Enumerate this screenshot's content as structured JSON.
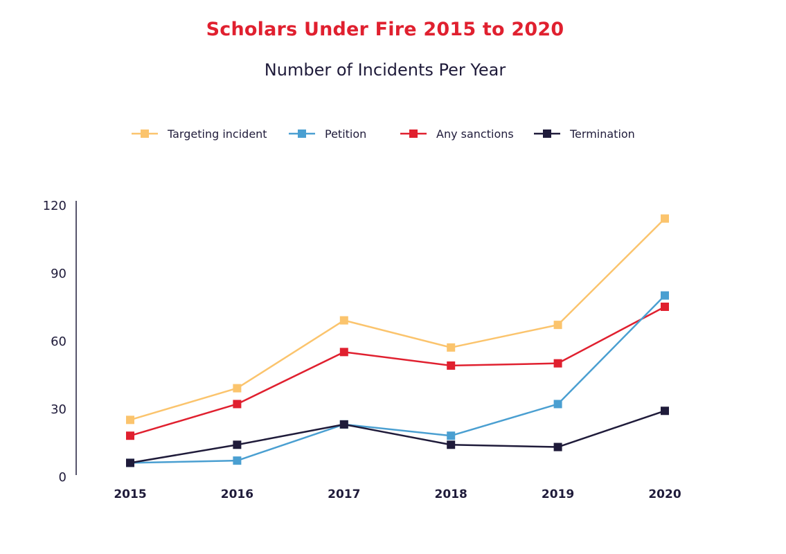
{
  "chart_data": {
    "type": "line",
    "title": "Scholars Under Fire 2015 to 2020",
    "subtitle": "Number of Incidents Per Year",
    "categories": [
      "2015",
      "2016",
      "2017",
      "2018",
      "2019",
      "2020"
    ],
    "ylim": [
      0,
      120
    ],
    "yticks": [
      0,
      30,
      60,
      90,
      120
    ],
    "grid": false,
    "legend_position": "top",
    "series": [
      {
        "name": "Targeting incident",
        "color": "#fbc46d",
        "values": [
          25,
          39,
          69,
          57,
          67,
          114
        ]
      },
      {
        "name": "Petition",
        "color": "#4a9fd1",
        "values": [
          6,
          7,
          23,
          18,
          32,
          80
        ]
      },
      {
        "name": "Any sanctions",
        "color": "#e0202f",
        "values": [
          18,
          32,
          55,
          49,
          50,
          75
        ]
      },
      {
        "name": "Termination",
        "color": "#1f1b3a",
        "values": [
          6,
          14,
          23,
          14,
          13,
          29
        ]
      }
    ]
  }
}
